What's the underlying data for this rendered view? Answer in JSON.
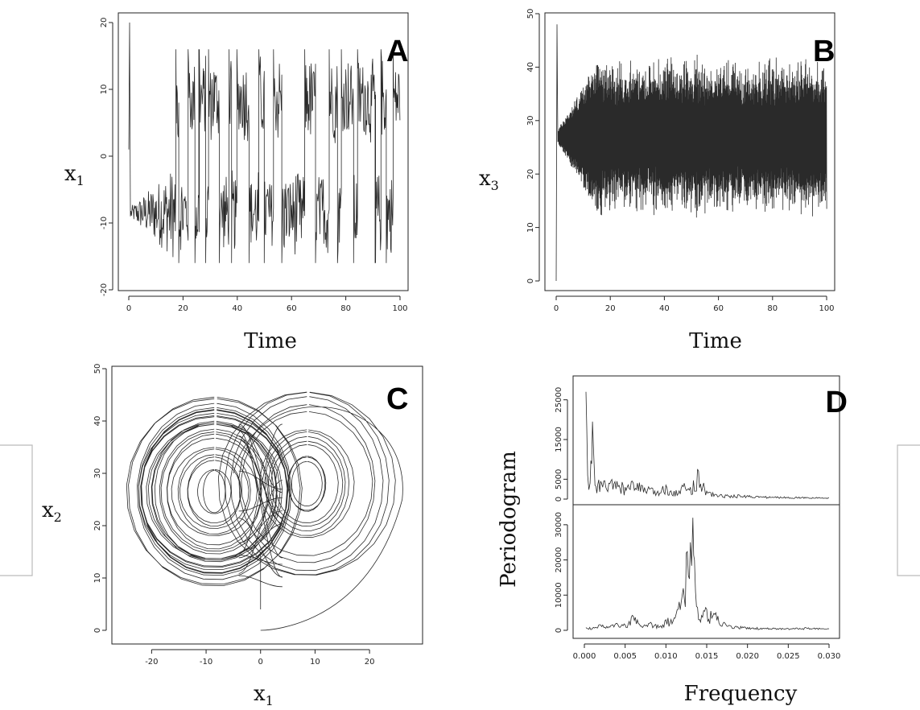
{
  "panels": {
    "A": {
      "letter": "A",
      "ylabel_main": "x",
      "ylabel_sub": "1",
      "xlabel": "Time"
    },
    "B": {
      "letter": "B",
      "ylabel_main": "x",
      "ylabel_sub": "3",
      "xlabel": "Time"
    },
    "C": {
      "letter": "C",
      "ylabel_main": "x",
      "ylabel_sub": "2",
      "xlabel_main": "x",
      "xlabel_sub": "1"
    },
    "D": {
      "letter": "D",
      "ylabel": "Periodogram",
      "xlabel": "Frequency"
    }
  },
  "chart_data": [
    {
      "panel": "A",
      "type": "line",
      "xlabel": "Time",
      "ylabel": "x1",
      "xlim": [
        0,
        100
      ],
      "ylim": [
        -20,
        20
      ],
      "xticks": [
        0,
        20,
        40,
        60,
        80,
        100
      ],
      "yticks": [
        -20,
        -10,
        0,
        10,
        20
      ],
      "series": [
        {
          "values_description": "chaotic oscillation switching between lobes near +8 and -8"
        }
      ],
      "switch_times": [
        0.8,
        17.5,
        18.5,
        22,
        24.5,
        26,
        28.5,
        29.5,
        33.5,
        37,
        38,
        40,
        44.5,
        48,
        50,
        53.5,
        56.5,
        65,
        69,
        74,
        77,
        78.5,
        83,
        84.5,
        91,
        93,
        95,
        97.5
      ],
      "peak_x1": 20,
      "min_x1": -18.5
    },
    {
      "panel": "B",
      "type": "line",
      "xlabel": "Time",
      "ylabel": "x3",
      "xlim": [
        0,
        100
      ],
      "ylim": [
        0,
        50
      ],
      "xticks": [
        0,
        20,
        40,
        60,
        80,
        100
      ],
      "yticks": [
        0,
        10,
        20,
        30,
        40,
        50
      ],
      "peak_x3": 48,
      "min_x3": 0
    },
    {
      "panel": "C",
      "type": "scatter",
      "xlabel": "x1",
      "ylabel": "x2",
      "xlim": [
        -27,
        29
      ],
      "ylim": [
        -2,
        50
      ],
      "xticks": [
        -20,
        -10,
        0,
        10,
        20
      ],
      "yticks": [
        0,
        10,
        20,
        30,
        40,
        50
      ],
      "left_lobe_center": [
        -8.5,
        26.5
      ],
      "right_lobe_center": [
        8.5,
        28
      ]
    },
    {
      "panel": "D-top",
      "type": "line",
      "xlim": [
        0,
        0.03
      ],
      "ylim": [
        0,
        30000
      ],
      "yticks": [
        0,
        5000,
        15000,
        25000
      ],
      "ytick_labels": [
        "0",
        "5000",
        "15000",
        "25000"
      ],
      "x": [
        0.0002,
        0.0004,
        0.0007,
        0.001,
        0.0013,
        0.002,
        0.003,
        0.004,
        0.005,
        0.006,
        0.007,
        0.008,
        0.009,
        0.01,
        0.011,
        0.012,
        0.013,
        0.014,
        0.015,
        0.016,
        0.018,
        0.02,
        0.022,
        0.025,
        0.028,
        0.03
      ],
      "values": [
        27000,
        6000,
        4000,
        19500,
        3500,
        4500,
        4000,
        4500,
        3000,
        4000,
        3500,
        2500,
        2000,
        3500,
        2000,
        3500,
        3000,
        7000,
        2000,
        1200,
        900,
        900,
        600,
        500,
        400,
        300
      ]
    },
    {
      "panel": "D-bottom",
      "type": "line",
      "xlabel": "Frequency",
      "ylabel": "Periodogram",
      "xlim": [
        0,
        0.03
      ],
      "ylim": [
        0,
        35000
      ],
      "xticks": [
        0,
        0.005,
        0.01,
        0.015,
        0.02,
        0.025,
        0.03
      ],
      "xtick_labels": [
        "0.000",
        "0.005",
        "0.010",
        "0.015",
        "0.020",
        "0.025",
        "0.030"
      ],
      "yticks": [
        0,
        10000,
        20000,
        30000
      ],
      "ytick_labels": [
        "0",
        "10000",
        "20000",
        "30000"
      ],
      "x": [
        0.0002,
        0.001,
        0.002,
        0.003,
        0.004,
        0.005,
        0.006,
        0.007,
        0.008,
        0.009,
        0.01,
        0.011,
        0.0115,
        0.012,
        0.0125,
        0.013,
        0.0133,
        0.0135,
        0.014,
        0.015,
        0.0155,
        0.016,
        0.017,
        0.018,
        0.02,
        0.022,
        0.025,
        0.027,
        0.03
      ],
      "values": [
        800,
        600,
        1500,
        1000,
        2000,
        1500,
        4000,
        1200,
        2000,
        1500,
        3000,
        3500,
        6000,
        10000,
        22000,
        25000,
        32000,
        20000,
        3000,
        6000,
        5500,
        4500,
        2000,
        1200,
        800,
        600,
        500,
        700,
        400
      ]
    }
  ]
}
